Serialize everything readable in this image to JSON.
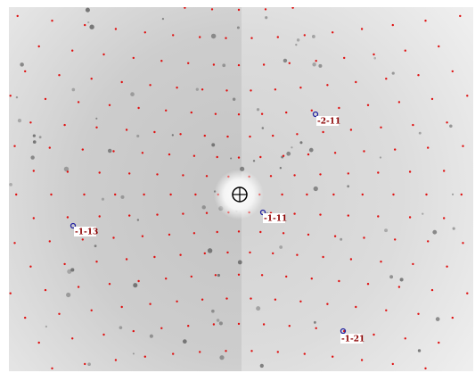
{
  "labels": [
    "-2-11",
    "-1-11",
    "-1-13",
    "-1-21"
  ]
}
